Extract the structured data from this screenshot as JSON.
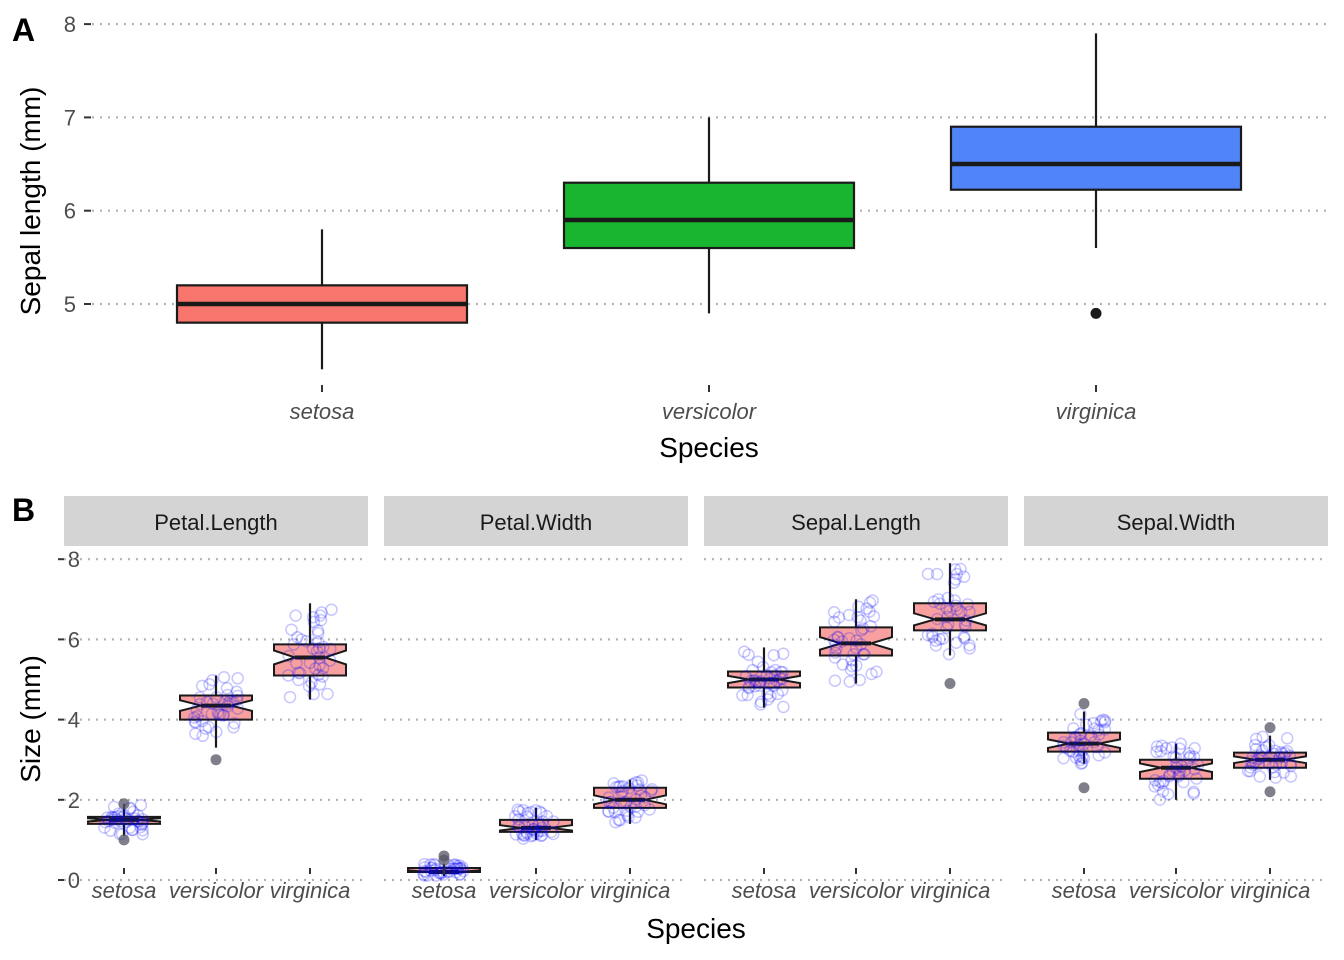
{
  "chart_data": [
    {
      "panel": "A",
      "type": "boxplot",
      "xlabel": "Species",
      "ylabel": "Sepal length (mm)",
      "yticks": [
        5,
        6,
        7,
        8
      ],
      "ylim": [
        4.1,
        8.0
      ],
      "grid": "dotted horizontal",
      "categories": [
        "setosa",
        "versicolor",
        "virginica"
      ],
      "fill_colors": [
        "#F8766D",
        "#18B52F",
        "#4F85F8"
      ],
      "boxes": [
        {
          "category": "setosa",
          "min": 4.3,
          "q1": 4.8,
          "median": 5.0,
          "q3": 5.2,
          "max": 5.8,
          "outliers": []
        },
        {
          "category": "versicolor",
          "min": 4.9,
          "q1": 5.6,
          "median": 5.9,
          "q3": 6.3,
          "max": 7.0,
          "outliers": []
        },
        {
          "category": "virginica",
          "min": 5.6,
          "q1": 6.225,
          "median": 6.5,
          "q3": 6.9,
          "max": 7.9,
          "outliers": [
            4.9
          ]
        }
      ]
    },
    {
      "panel": "B",
      "type": "boxplot",
      "faceted": true,
      "notched": true,
      "jittered_points": true,
      "xlabel": "Species",
      "ylabel": "Size (mm)",
      "yticks": [
        0,
        2,
        4,
        6,
        8
      ],
      "ylim": [
        0,
        8
      ],
      "box_fill": "#F8A0A0",
      "point_color": "#0000FF",
      "outlier_color": "#555566",
      "categories": [
        "setosa",
        "versicolor",
        "virginica"
      ],
      "facets": [
        {
          "name": "Petal.Length",
          "boxes": [
            {
              "category": "setosa",
              "min": 1.1,
              "q1": 1.4,
              "median": 1.5,
              "q3": 1.575,
              "max": 1.9,
              "outliers": [
                1.0,
                1.9
              ]
            },
            {
              "category": "versicolor",
              "min": 3.3,
              "q1": 4.0,
              "median": 4.35,
              "q3": 4.6,
              "max": 5.1,
              "outliers": [
                3.0
              ]
            },
            {
              "category": "virginica",
              "min": 4.5,
              "q1": 5.1,
              "median": 5.55,
              "q3": 5.875,
              "max": 6.9,
              "outliers": []
            }
          ]
        },
        {
          "name": "Petal.Width",
          "boxes": [
            {
              "category": "setosa",
              "min": 0.1,
              "q1": 0.2,
              "median": 0.2,
              "q3": 0.3,
              "max": 0.4,
              "outliers": [
                0.5,
                0.6
              ]
            },
            {
              "category": "versicolor",
              "min": 1.0,
              "q1": 1.2,
              "median": 1.3,
              "q3": 1.5,
              "max": 1.8,
              "outliers": []
            },
            {
              "category": "virginica",
              "min": 1.4,
              "q1": 1.8,
              "median": 2.0,
              "q3": 2.3,
              "max": 2.5,
              "outliers": []
            }
          ]
        },
        {
          "name": "Sepal.Length",
          "boxes": [
            {
              "category": "setosa",
              "min": 4.3,
              "q1": 4.8,
              "median": 5.0,
              "q3": 5.2,
              "max": 5.8,
              "outliers": []
            },
            {
              "category": "versicolor",
              "min": 4.9,
              "q1": 5.6,
              "median": 5.9,
              "q3": 6.3,
              "max": 7.0,
              "outliers": []
            },
            {
              "category": "virginica",
              "min": 5.6,
              "q1": 6.225,
              "median": 6.5,
              "q3": 6.9,
              "max": 7.9,
              "outliers": [
                4.9
              ]
            }
          ]
        },
        {
          "name": "Sepal.Width",
          "boxes": [
            {
              "category": "setosa",
              "min": 2.9,
              "q1": 3.2,
              "median": 3.4,
              "q3": 3.675,
              "max": 4.2,
              "outliers": [
                4.4,
                2.3
              ]
            },
            {
              "category": "versicolor",
              "min": 2.0,
              "q1": 2.525,
              "median": 2.8,
              "q3": 3.0,
              "max": 3.4,
              "outliers": []
            },
            {
              "category": "virginica",
              "min": 2.5,
              "q1": 2.8,
              "median": 3.0,
              "q3": 3.175,
              "max": 3.6,
              "outliers": [
                3.8,
                2.2
              ]
            }
          ]
        }
      ]
    }
  ],
  "labels": {
    "panel_a_tag": "A",
    "panel_b_tag": "B"
  }
}
